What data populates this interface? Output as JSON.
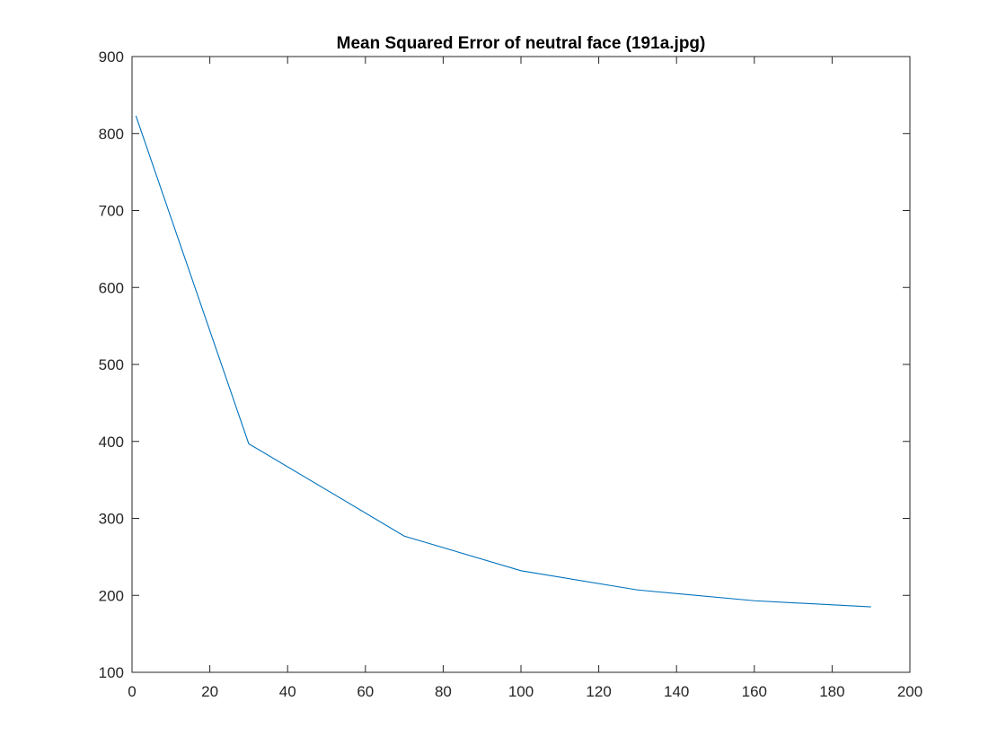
{
  "chart_data": {
    "type": "line",
    "title": "Mean Squared Error of neutral face (191a.jpg)",
    "xlabel": "",
    "ylabel": "",
    "xlim": [
      0,
      200
    ],
    "ylim": [
      100,
      900
    ],
    "xticks": [
      0,
      20,
      40,
      60,
      80,
      100,
      120,
      140,
      160,
      180,
      200
    ],
    "yticks": [
      100,
      200,
      300,
      400,
      500,
      600,
      700,
      800,
      900
    ],
    "grid": false,
    "legend": "none",
    "series": [
      {
        "color": "#0072bd",
        "x": [
          1,
          30,
          70,
          100,
          130,
          160,
          190
        ],
        "y": [
          823,
          397,
          277,
          232,
          207,
          193,
          185
        ]
      }
    ]
  }
}
